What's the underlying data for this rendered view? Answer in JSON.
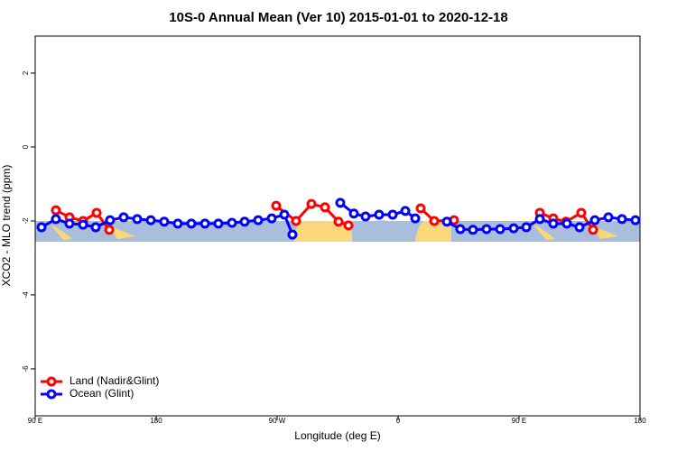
{
  "chart_data": {
    "type": "line",
    "title": "10S-0 Annual Mean (Ver 10)   2015-01-01 to 2020-12-18",
    "x_label": "Longitude (deg E)",
    "y_label": "XCO2 - MLO trend (ppm)",
    "xlim": [
      90,
      540
    ],
    "xticks": [
      {
        "value": 90,
        "label": "90 E"
      },
      180,
      {
        "value": 270,
        "label": "90 W"
      },
      {
        "value": 360,
        "label": "0"
      },
      {
        "value": 450,
        "label": "90 E"
      },
      {
        "value": 540,
        "label": "180"
      }
    ],
    "ylim": [
      -7.27,
      3.0
    ],
    "yticks": [
      -6,
      -4,
      -2,
      0,
      2
    ],
    "legend": "bottom-left",
    "series": [
      {
        "name": "Land (Nadir&Glint)",
        "color": "#ff0000",
        "x": [
          105.4,
          115.5,
          125.6,
          135.7,
          145.1,
          null,
          269.3,
          284.1,
          295.5,
          305.6,
          315.7,
          323.1,
          null,
          376.8,
          386.9,
          401.6,
          null,
          465.5,
          475.5,
          484.9,
          496.3,
          505.1
        ],
        "values": [
          -1.71,
          -1.9,
          -2.0,
          -1.78,
          -2.24,
          null,
          -1.59,
          -2.0,
          -1.54,
          -1.63,
          -2.02,
          -2.12,
          null,
          -1.66,
          -2.0,
          -1.98,
          null,
          -1.78,
          -1.93,
          -2.02,
          -1.78,
          -2.24
        ]
      },
      {
        "name": "Ocean (Glint)",
        "color": "#0000ff",
        "x": [
          94.7,
          105.4,
          115.5,
          125.6,
          135.0,
          145.7,
          155.8,
          165.9,
          176.0,
          186.0,
          196.1,
          206.2,
          216.3,
          226.3,
          236.4,
          245.8,
          255.9,
          266.0,
          275.4,
          281.4,
          null,
          317.0,
          327.1,
          335.8,
          345.9,
          356.0,
          365.4,
          372.8,
          null,
          396.3,
          406.3,
          415.7,
          425.8,
          435.9,
          446.0,
          455.4,
          465.5,
          475.5,
          485.6,
          495.0,
          506.4,
          516.5,
          526.6,
          536.6
        ],
        "values": [
          -2.17,
          -1.95,
          -2.07,
          -2.1,
          -2.17,
          -1.98,
          -1.9,
          -1.95,
          -1.98,
          -2.02,
          -2.07,
          -2.07,
          -2.07,
          -2.07,
          -2.05,
          -2.02,
          -1.98,
          -1.93,
          -1.83,
          -2.37,
          null,
          -1.51,
          -1.8,
          -1.88,
          -1.83,
          -1.83,
          -1.73,
          -1.93,
          null,
          -2.02,
          -2.22,
          -2.24,
          -2.22,
          -2.22,
          -2.2,
          -2.17,
          -1.95,
          -2.07,
          -2.07,
          -2.17,
          -1.98,
          -1.9,
          -1.95,
          -1.98
        ]
      }
    ]
  }
}
